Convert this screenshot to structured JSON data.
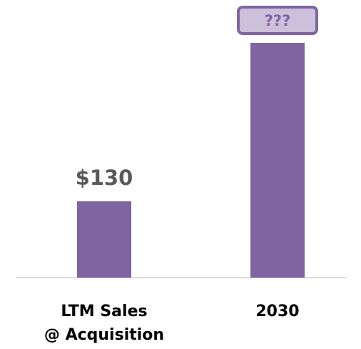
{
  "chart_data": {
    "type": "bar",
    "categories": [
      "LTM Sales\n@ Acquisition",
      "2030"
    ],
    "values": [
      130,
      400
    ],
    "value_labels": [
      "$130",
      "???"
    ],
    "color": "#8064a2"
  }
}
